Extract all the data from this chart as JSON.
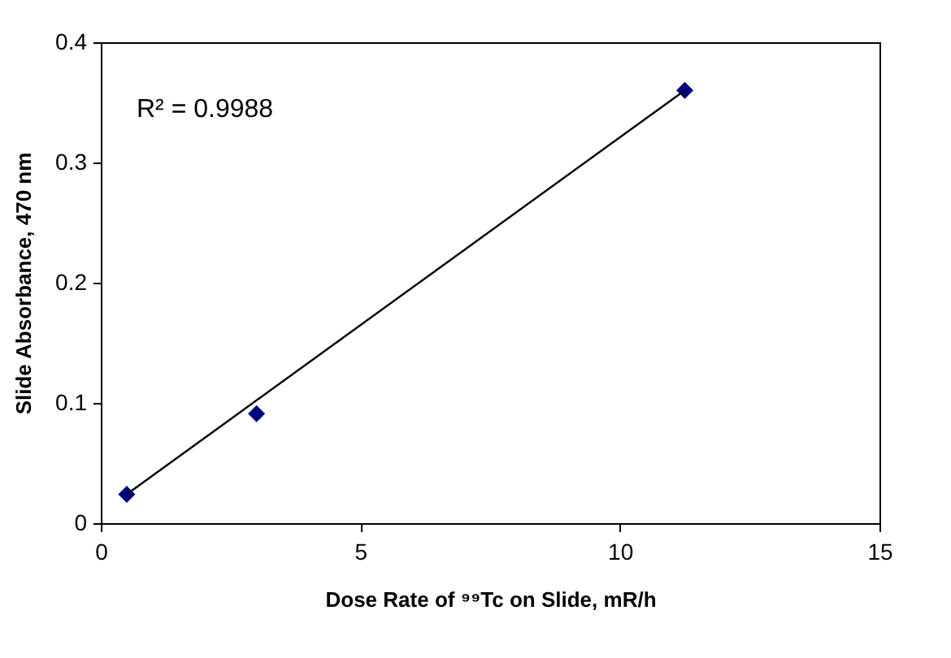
{
  "chart_data": {
    "type": "scatter",
    "xlabel": "Dose Rate of ⁹⁹Tc on Slide, mR/h",
    "ylabel": "Slide Absorbance, 470 nm",
    "annotations": [
      "R² = 0.9988"
    ],
    "series": [
      {
        "type": "scatter",
        "color": "#000080",
        "marker": "diamond",
        "x": [
          0.5,
          3,
          11.25
        ],
        "values": [
          0.024,
          0.091,
          0.36
        ]
      },
      {
        "type": "line",
        "color": "#000000",
        "marker": "none",
        "x": [
          0.5,
          11.25
        ],
        "values": [
          0.024,
          0.36
        ]
      }
    ],
    "xlim": [
      0,
      15
    ],
    "xticks": [
      0,
      5,
      10,
      15
    ],
    "ylim": [
      0,
      0.4
    ],
    "yticks": [
      0,
      0.1,
      0.2,
      0.3,
      0.4
    ],
    "grid": false,
    "legend": false
  }
}
